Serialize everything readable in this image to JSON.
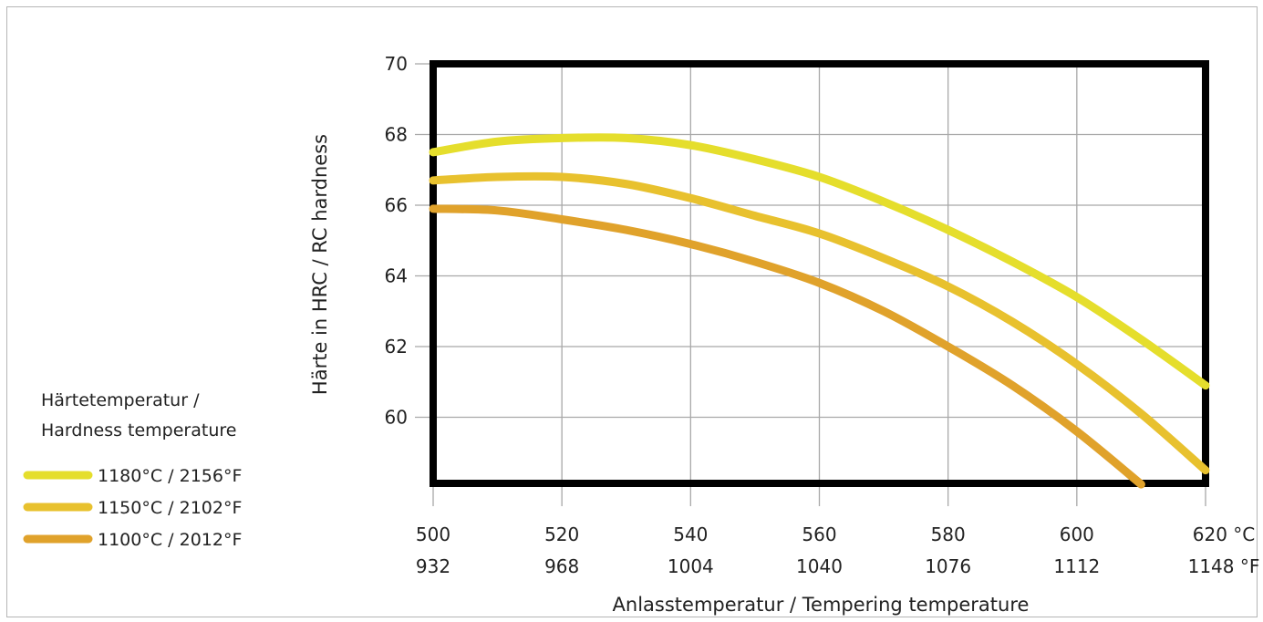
{
  "chart_data": {
    "type": "line",
    "ylabel": "Härte in HRC / RC hardness",
    "xlabel": "Anlasstemperatur / Tempering temperature",
    "xlim": [
      500,
      620
    ],
    "ylim": [
      58,
      70
    ],
    "x_ticks": [
      {
        "c": "500",
        "f": "932"
      },
      {
        "c": "520",
        "f": "968"
      },
      {
        "c": "540",
        "f": "1004"
      },
      {
        "c": "560",
        "f": "1040"
      },
      {
        "c": "580",
        "f": "1076"
      },
      {
        "c": "600",
        "f": "1112"
      },
      {
        "c": "620",
        "f": "1148"
      }
    ],
    "x_unit_c": "°C",
    "x_unit_f": "°F",
    "y_ticks": [
      60,
      62,
      64,
      66,
      68,
      70
    ],
    "grid": true,
    "legend_title": [
      "Härtetemperatur /",
      "Hardness temperature"
    ],
    "legend_position": "bottom-left",
    "series": [
      {
        "name": "1180°C / 2156°F",
        "color": "#e5de2c",
        "x": [
          500,
          510,
          520,
          530,
          540,
          550,
          560,
          570,
          580,
          590,
          600,
          610,
          620
        ],
        "y": [
          67.5,
          67.8,
          67.9,
          67.9,
          67.7,
          67.3,
          66.8,
          66.1,
          65.3,
          64.4,
          63.4,
          62.2,
          60.9
        ]
      },
      {
        "name": "1150°C / 2102°F",
        "color": "#e8c12e",
        "x": [
          500,
          510,
          520,
          530,
          540,
          550,
          560,
          570,
          580,
          590,
          600,
          610,
          620
        ],
        "y": [
          66.7,
          66.8,
          66.8,
          66.6,
          66.2,
          65.7,
          65.2,
          64.5,
          63.7,
          62.7,
          61.5,
          60.1,
          58.5
        ]
      },
      {
        "name": "1100°C / 2012°F",
        "color": "#e0a22b",
        "x": [
          500,
          510,
          520,
          530,
          540,
          550,
          560,
          570,
          580,
          590,
          600,
          610
        ],
        "y": [
          65.9,
          65.85,
          65.6,
          65.3,
          64.9,
          64.4,
          63.8,
          63.0,
          62.0,
          60.9,
          59.6,
          58.1
        ]
      }
    ]
  }
}
